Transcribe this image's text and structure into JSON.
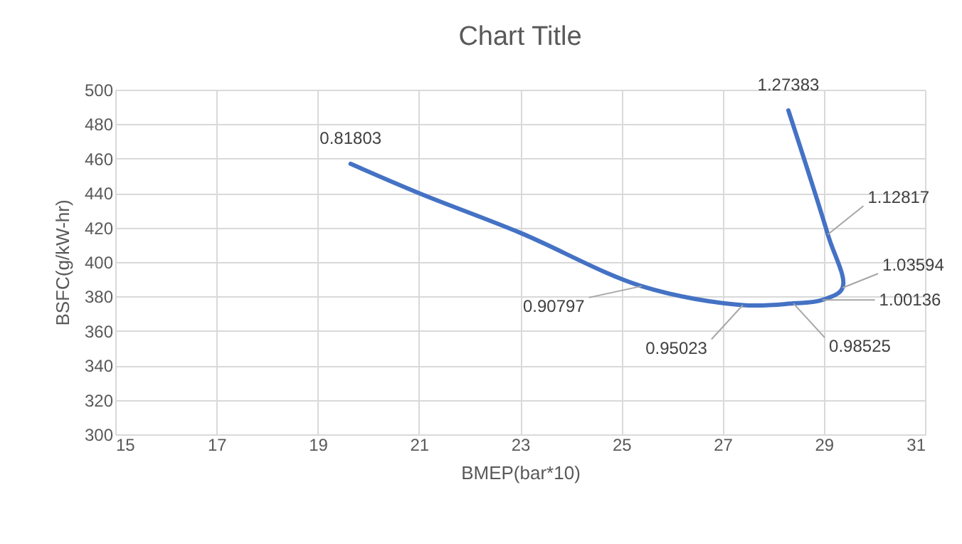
{
  "chart_data": {
    "type": "line",
    "title": "Chart Title",
    "xlabel": "BMEP(bar*10)",
    "ylabel": "BSFC(g/kW-hr)",
    "x": [
      19.65,
      21,
      23,
      25.4,
      27.4,
      28.4,
      28.97,
      29.37,
      29.08,
      28.3
    ],
    "series": [
      {
        "color": "#4472c4",
        "values": [
          457,
          440,
          417,
          386,
          375,
          376,
          378,
          385,
          416,
          488
        ]
      }
    ],
    "xlim": [
      15,
      31
    ],
    "xticks": [
      15,
      17,
      19,
      21,
      23,
      25,
      27,
      29,
      31
    ],
    "ylim": [
      300,
      500
    ],
    "yticks": [
      300,
      320,
      340,
      360,
      380,
      400,
      420,
      440,
      460,
      480,
      500
    ],
    "grid": true,
    "legend": false,
    "marker": "none",
    "line_style": "solid",
    "annotations": [
      {
        "text": "0.81803",
        "x": 19.65,
        "y": 457
      },
      {
        "text": "0.90797",
        "x": 25.4,
        "y": 386
      },
      {
        "text": "0.95023",
        "x": 27.4,
        "y": 375
      },
      {
        "text": "0.98525",
        "x": 28.4,
        "y": 376
      },
      {
        "text": "1.00136",
        "x": 28.97,
        "y": 378
      },
      {
        "text": "1.03594",
        "x": 29.37,
        "y": 385
      },
      {
        "text": "1.12817",
        "x": 29.08,
        "y": 416
      },
      {
        "text": "1.27383",
        "x": 28.3,
        "y": 488
      }
    ]
  }
}
